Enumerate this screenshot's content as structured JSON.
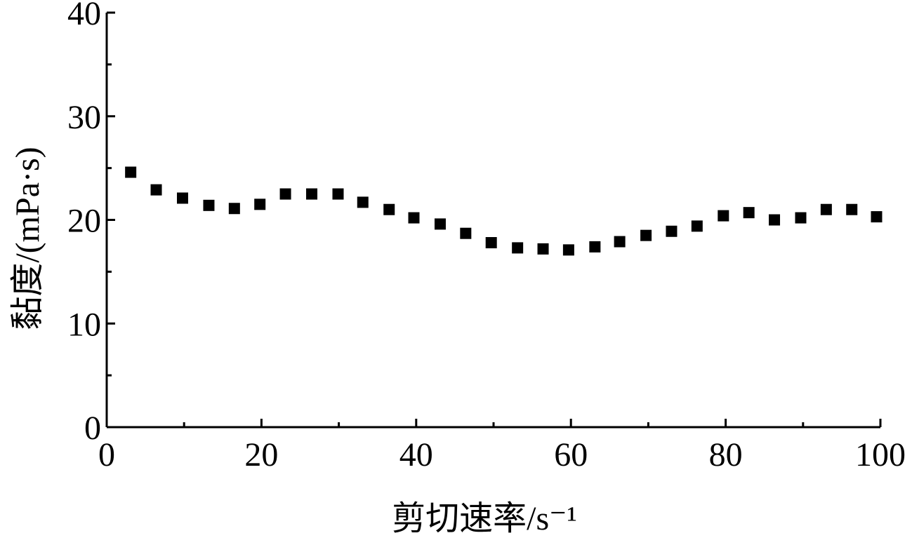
{
  "chart_data": {
    "type": "scatter",
    "x_label": "剪切速率/s⁻¹",
    "y_label": "黏度/(mPa·s)",
    "color": "#000000",
    "x": [
      3.1,
      6.4,
      9.8,
      13.2,
      16.5,
      19.8,
      23.1,
      26.5,
      29.9,
      33.1,
      36.5,
      39.7,
      43.1,
      46.4,
      49.7,
      53.1,
      56.4,
      59.7,
      63.1,
      66.3,
      69.7,
      73.0,
      76.3,
      79.7,
      83.0,
      86.3,
      89.7,
      93.0,
      96.3,
      99.5
    ],
    "values": [
      24.6,
      22.9,
      22.1,
      21.4,
      21.1,
      21.5,
      22.5,
      22.5,
      22.5,
      21.7,
      21.0,
      20.2,
      19.6,
      18.7,
      17.8,
      17.3,
      17.2,
      17.1,
      17.4,
      17.9,
      18.5,
      18.9,
      19.4,
      20.4,
      20.7,
      20.0,
      20.2,
      21.0,
      21.0,
      20.3
    ],
    "xlim": [
      0,
      100
    ],
    "xticks": [
      0,
      20,
      40,
      60,
      80,
      100
    ],
    "xticks_minor": [
      10,
      30,
      50,
      70,
      90
    ],
    "ylim": [
      0,
      40
    ],
    "yticks": [
      0,
      10,
      20,
      30,
      40
    ],
    "yticks_minor": [
      5,
      15,
      25,
      35
    ]
  }
}
